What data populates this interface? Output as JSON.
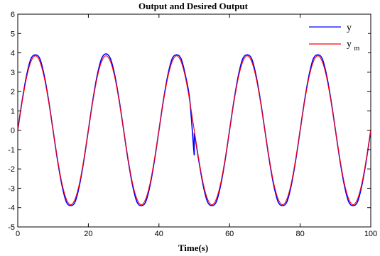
{
  "chart_data": {
    "type": "line",
    "title": "Output and Desired Output",
    "xlabel": "Time(s)",
    "ylabel": "",
    "xlim": [
      0,
      100
    ],
    "ylim": [
      -5,
      6
    ],
    "xticks": [
      0,
      20,
      40,
      60,
      80,
      100
    ],
    "yticks": [
      -5,
      -4,
      -3,
      -2,
      -1,
      0,
      1,
      2,
      3,
      4,
      5,
      6
    ],
    "grid": false,
    "legend_position": "top-right",
    "series": [
      {
        "name": "y",
        "legend_main": "y",
        "legend_sub": "",
        "color": "#0000ff",
        "x": [
          0,
          1.25,
          2.5,
          3.75,
          5,
          6.25,
          7.5,
          8.75,
          10,
          11.25,
          12.5,
          13.75,
          15,
          16.25,
          17.5,
          18.75,
          20,
          21.25,
          22.5,
          23.75,
          25,
          26.25,
          27.5,
          28.75,
          30,
          31.25,
          32.5,
          33.75,
          35,
          36.25,
          37.5,
          38.75,
          40,
          41.25,
          42.5,
          43.75,
          45,
          46.25,
          47.5,
          48.75,
          50,
          50,
          51.25,
          52.5,
          53.75,
          55,
          56.25,
          57.5,
          58.75,
          60,
          61.25,
          62.5,
          63.75,
          65,
          66.25,
          67.5,
          68.75,
          70,
          71.25,
          72.5,
          73.75,
          75,
          76.25,
          77.5,
          78.75,
          80,
          81.25,
          82.5,
          83.75,
          85,
          86.25,
          87.5,
          88.75,
          90,
          91.25,
          92.5,
          93.75,
          95,
          96.25,
          97.5,
          98.75,
          100
        ],
        "y": [
          0,
          1.53,
          2.83,
          3.7,
          3.9,
          3.7,
          2.83,
          1.53,
          0,
          -1.53,
          -2.83,
          -3.7,
          -3.9,
          -3.7,
          -2.83,
          -1.53,
          0,
          1.53,
          2.83,
          3.7,
          3.95,
          3.7,
          2.83,
          1.53,
          0,
          -1.53,
          -2.83,
          -3.7,
          -3.9,
          -3.7,
          -2.83,
          -1.53,
          0,
          1.53,
          2.83,
          3.7,
          3.9,
          3.7,
          2.83,
          1.53,
          -1.3,
          -0.2,
          -1.53,
          -2.83,
          -3.7,
          -3.9,
          -3.7,
          -2.83,
          -1.53,
          0,
          1.53,
          2.83,
          3.7,
          3.9,
          3.7,
          2.83,
          1.53,
          0,
          -1.53,
          -2.83,
          -3.7,
          -3.9,
          -3.7,
          -2.83,
          -1.53,
          0,
          1.53,
          2.83,
          3.7,
          3.9,
          3.7,
          2.83,
          1.53,
          0,
          -1.53,
          -2.83,
          -3.7,
          -3.9,
          -3.7,
          -2.83,
          -1.53,
          0
        ]
      },
      {
        "name": "y_m",
        "legend_main": "y",
        "legend_sub": "m",
        "color": "#ff0000",
        "x": [
          0,
          1.25,
          2.5,
          3.75,
          5,
          6.25,
          7.5,
          8.75,
          10,
          11.25,
          12.5,
          13.75,
          15,
          16.25,
          17.5,
          18.75,
          20,
          21.25,
          22.5,
          23.75,
          25,
          26.25,
          27.5,
          28.75,
          30,
          31.25,
          32.5,
          33.75,
          35,
          36.25,
          37.5,
          38.75,
          40,
          41.25,
          42.5,
          43.75,
          45,
          46.25,
          47.5,
          48.75,
          50,
          51.25,
          52.5,
          53.75,
          55,
          56.25,
          57.5,
          58.75,
          60,
          61.25,
          62.5,
          63.75,
          65,
          66.25,
          67.5,
          68.75,
          70,
          71.25,
          72.5,
          73.75,
          75,
          76.25,
          77.5,
          78.75,
          80,
          81.25,
          82.5,
          83.75,
          85,
          86.25,
          87.5,
          88.75,
          90,
          91.25,
          92.5,
          93.75,
          95,
          96.25,
          97.5,
          98.75,
          100
        ],
        "y": [
          0,
          1.47,
          2.72,
          3.55,
          3.85,
          3.55,
          2.72,
          1.47,
          0,
          -1.47,
          -2.72,
          -3.55,
          -3.85,
          -3.55,
          -2.72,
          -1.47,
          0,
          1.47,
          2.72,
          3.55,
          3.85,
          3.55,
          2.72,
          1.47,
          0,
          -1.47,
          -2.72,
          -3.55,
          -3.85,
          -3.55,
          -2.72,
          -1.47,
          0,
          1.47,
          2.72,
          3.55,
          3.85,
          3.55,
          2.72,
          1.47,
          0,
          -1.47,
          -2.72,
          -3.55,
          -3.85,
          -3.55,
          -2.72,
          -1.47,
          0,
          1.47,
          2.72,
          3.55,
          3.85,
          3.55,
          2.72,
          1.47,
          0,
          -1.47,
          -2.72,
          -3.55,
          -3.85,
          -3.55,
          -2.72,
          -1.47,
          0,
          1.47,
          2.72,
          3.55,
          3.85,
          3.55,
          2.72,
          1.47,
          0,
          -1.47,
          -2.72,
          -3.55,
          -3.85,
          -3.55,
          -2.72,
          -1.47,
          0
        ]
      }
    ]
  }
}
